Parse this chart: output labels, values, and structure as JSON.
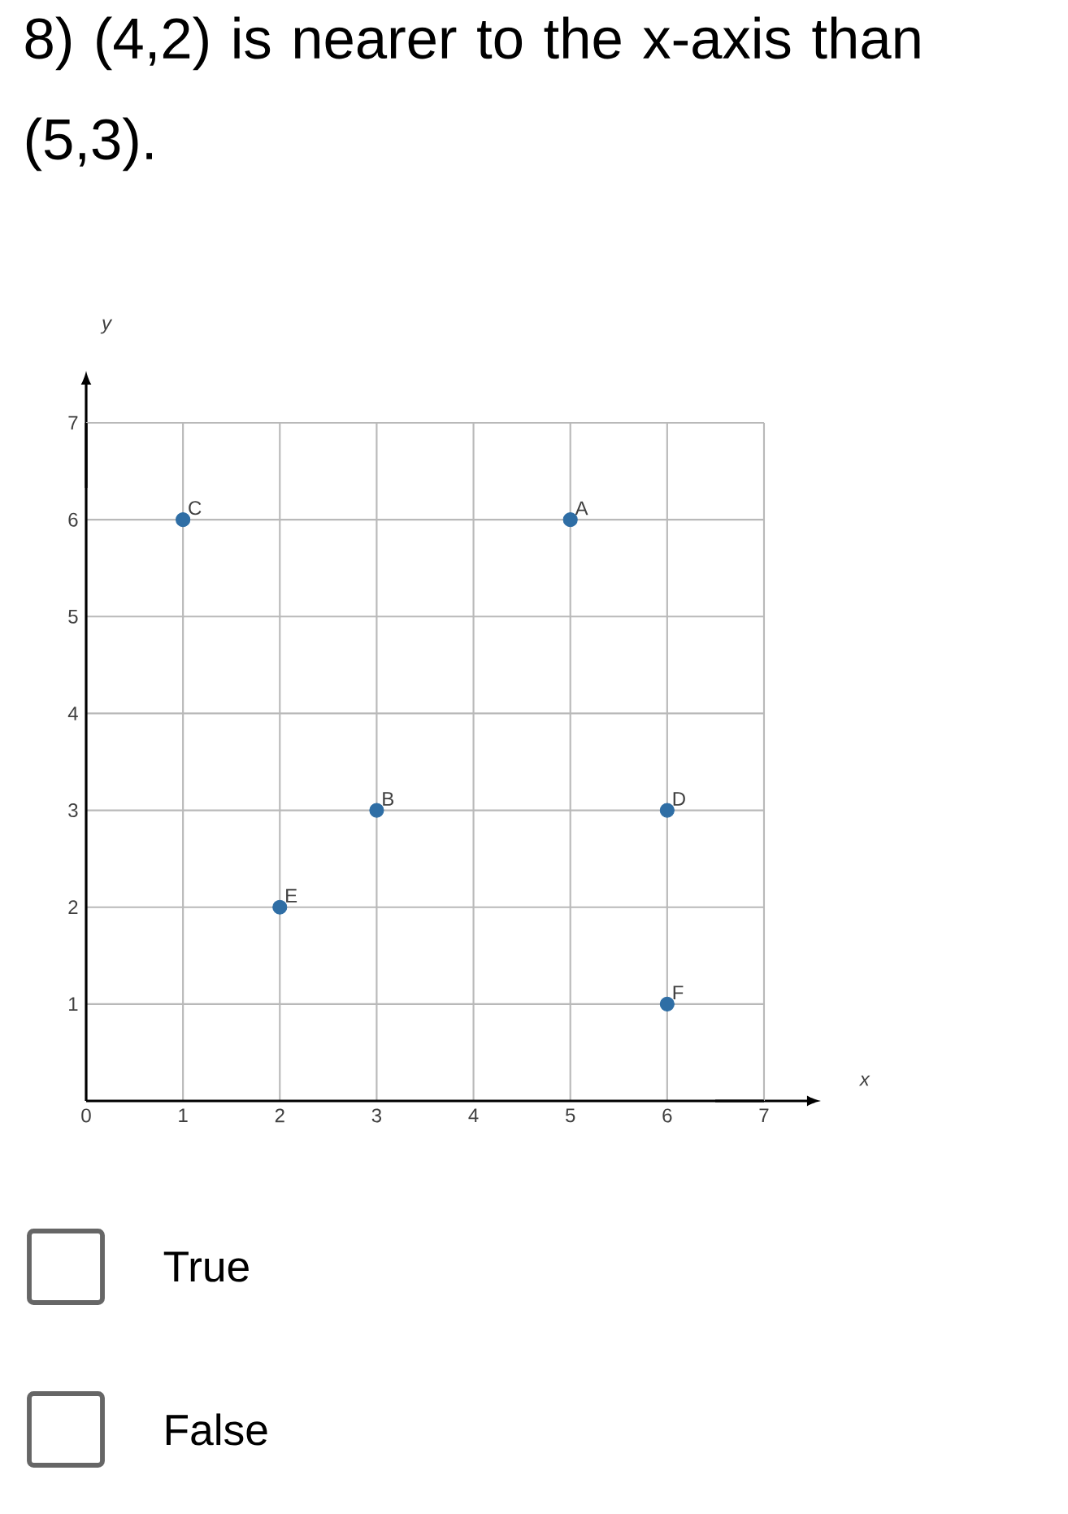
{
  "chart_data": {
    "type": "scatter",
    "title": "8) (4,2) is nearer to the x-axis than (5,3).",
    "xlabel": "x",
    "ylabel": "y",
    "x": [
      5,
      3,
      1,
      6,
      2,
      6
    ],
    "values": [
      6,
      3,
      6,
      3,
      2,
      1
    ],
    "color": "#2f6ea5",
    "marker": "circle",
    "grid": true,
    "xlim": [
      0,
      7
    ],
    "ylim": [
      0,
      7
    ],
    "xticks": [
      0,
      1,
      2,
      3,
      4,
      5,
      6,
      7
    ],
    "yticks": [
      1,
      2,
      3,
      4,
      5,
      6,
      7
    ],
    "annotations": [
      {
        "text": "A",
        "x": 5,
        "y": 6
      },
      {
        "text": "B",
        "x": 3,
        "y": 3
      },
      {
        "text": "C",
        "x": 1,
        "y": 6
      },
      {
        "text": "D",
        "x": 6,
        "y": 3
      },
      {
        "text": "E",
        "x": 2,
        "y": 2
      },
      {
        "text": "F",
        "x": 6,
        "y": 1
      },
      "True",
      "False"
    ]
  }
}
